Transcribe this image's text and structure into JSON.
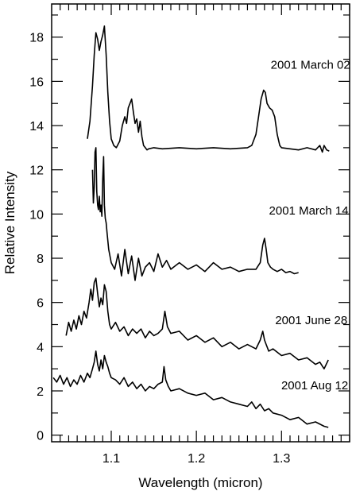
{
  "chart_data": {
    "type": "line",
    "title": "",
    "xlabel": "Wavelength (micron)",
    "ylabel": "Relative Intensity",
    "xlim": [
      1.03,
      1.38
    ],
    "ylim": [
      -0.3,
      19.5
    ],
    "x_ticks": [
      1.1,
      1.2,
      1.3
    ],
    "x_tick_labels": [
      "1.1",
      "1.2",
      "1.3"
    ],
    "y_ticks": [
      0,
      2,
      4,
      6,
      8,
      10,
      12,
      14,
      16,
      18
    ],
    "y_tick_labels": [
      "0",
      "2",
      "4",
      "6",
      "8",
      "10",
      "12",
      "14",
      "16",
      "18"
    ],
    "grid": false,
    "legend": "none",
    "series": [
      {
        "name": "2001 March 02",
        "color": "#000000",
        "x": [
          1.072,
          1.075,
          1.078,
          1.08,
          1.082,
          1.084,
          1.086,
          1.088,
          1.09,
          1.092,
          1.094,
          1.096,
          1.098,
          1.1,
          1.103,
          1.106,
          1.11,
          1.113,
          1.116,
          1.118,
          1.12,
          1.122,
          1.124,
          1.126,
          1.128,
          1.13,
          1.132,
          1.134,
          1.136,
          1.138,
          1.14,
          1.142,
          1.144,
          1.15,
          1.16,
          1.18,
          1.2,
          1.22,
          1.24,
          1.26,
          1.265,
          1.27,
          1.273,
          1.276,
          1.279,
          1.281,
          1.283,
          1.286,
          1.289,
          1.292,
          1.295,
          1.298,
          1.3,
          1.31,
          1.32,
          1.33,
          1.34,
          1.345,
          1.348,
          1.35,
          1.353,
          1.356
        ],
        "y": [
          13.4,
          14.2,
          15.8,
          17.2,
          18.2,
          17.9,
          17.4,
          17.8,
          18.1,
          18.5,
          17.2,
          15.5,
          14.2,
          13.4,
          13.1,
          13.0,
          13.3,
          14.0,
          14.4,
          14.1,
          14.8,
          15.0,
          15.2,
          14.6,
          14.1,
          14.3,
          13.7,
          14.2,
          13.5,
          13.1,
          13.0,
          12.9,
          12.95,
          13.0,
          12.95,
          13.0,
          12.95,
          13.0,
          12.95,
          13.0,
          13.1,
          13.6,
          14.4,
          15.2,
          15.6,
          15.5,
          15.0,
          14.8,
          14.7,
          14.4,
          13.6,
          13.1,
          13.0,
          12.95,
          12.9,
          13.0,
          12.9,
          13.1,
          12.8,
          13.1,
          12.9,
          12.85
        ],
        "label_x": 1.334,
        "label_y": 16.75
      },
      {
        "name": "2001 March 14",
        "color": "#000000",
        "x": [
          1.078,
          1.079,
          1.08,
          1.081,
          1.082,
          1.083,
          1.084,
          1.085,
          1.086,
          1.087,
          1.088,
          1.089,
          1.09,
          1.091,
          1.092,
          1.093,
          1.094,
          1.095,
          1.097,
          1.1,
          1.104,
          1.108,
          1.112,
          1.116,
          1.12,
          1.124,
          1.128,
          1.132,
          1.136,
          1.14,
          1.145,
          1.15,
          1.155,
          1.16,
          1.165,
          1.17,
          1.18,
          1.19,
          1.2,
          1.21,
          1.22,
          1.23,
          1.24,
          1.25,
          1.26,
          1.27,
          1.275,
          1.278,
          1.28,
          1.282,
          1.284,
          1.287,
          1.29,
          1.295,
          1.3,
          1.305,
          1.31,
          1.315,
          1.32
        ],
        "y": [
          12.0,
          10.5,
          11.2,
          12.8,
          13.0,
          11.0,
          10.4,
          10.2,
          10.8,
          10.1,
          10.4,
          9.9,
          11.6,
          12.6,
          10.4,
          9.8,
          9.6,
          9.2,
          8.4,
          7.8,
          7.5,
          8.2,
          7.2,
          8.4,
          7.3,
          8.1,
          7.0,
          8.0,
          7.2,
          7.6,
          7.8,
          7.4,
          8.2,
          7.6,
          7.9,
          7.5,
          7.8,
          7.5,
          7.7,
          7.4,
          7.8,
          7.5,
          7.6,
          7.4,
          7.5,
          7.5,
          7.8,
          8.6,
          8.9,
          8.4,
          7.8,
          7.6,
          7.5,
          7.4,
          7.5,
          7.35,
          7.4,
          7.3,
          7.35
        ],
        "label_x": 1.332,
        "label_y": 10.15
      },
      {
        "name": "2001 June 28",
        "color": "#000000",
        "x": [
          1.047,
          1.05,
          1.053,
          1.056,
          1.059,
          1.062,
          1.065,
          1.068,
          1.071,
          1.074,
          1.076,
          1.078,
          1.08,
          1.082,
          1.084,
          1.086,
          1.088,
          1.09,
          1.092,
          1.094,
          1.096,
          1.098,
          1.1,
          1.105,
          1.11,
          1.115,
          1.12,
          1.125,
          1.13,
          1.135,
          1.14,
          1.145,
          1.15,
          1.155,
          1.16,
          1.163,
          1.166,
          1.17,
          1.18,
          1.19,
          1.2,
          1.21,
          1.22,
          1.23,
          1.24,
          1.25,
          1.26,
          1.27,
          1.275,
          1.278,
          1.28,
          1.282,
          1.285,
          1.29,
          1.3,
          1.31,
          1.32,
          1.33,
          1.34,
          1.345,
          1.35,
          1.355
        ],
        "y": [
          4.5,
          5.1,
          4.7,
          5.2,
          4.8,
          5.4,
          5.0,
          5.6,
          5.3,
          6.0,
          6.6,
          6.1,
          6.9,
          7.1,
          6.4,
          5.8,
          6.2,
          5.9,
          6.8,
          6.5,
          5.6,
          5.0,
          4.8,
          5.1,
          4.7,
          4.9,
          4.5,
          4.8,
          4.6,
          4.8,
          4.4,
          4.7,
          4.5,
          4.6,
          4.8,
          5.6,
          4.9,
          4.6,
          4.7,
          4.3,
          4.5,
          4.2,
          4.4,
          4.0,
          4.2,
          3.9,
          4.1,
          3.9,
          4.3,
          4.7,
          4.3,
          4.1,
          3.8,
          3.9,
          3.6,
          3.7,
          3.4,
          3.5,
          3.2,
          3.3,
          3.0,
          3.4
        ],
        "label_x": 1.335,
        "label_y": 5.2
      },
      {
        "name": "2001 Aug 12",
        "color": "#000000",
        "x": [
          1.032,
          1.036,
          1.04,
          1.044,
          1.048,
          1.052,
          1.056,
          1.06,
          1.064,
          1.068,
          1.072,
          1.075,
          1.078,
          1.08,
          1.082,
          1.084,
          1.086,
          1.088,
          1.09,
          1.092,
          1.094,
          1.096,
          1.098,
          1.1,
          1.105,
          1.11,
          1.115,
          1.12,
          1.125,
          1.13,
          1.135,
          1.14,
          1.145,
          1.15,
          1.155,
          1.16,
          1.162,
          1.164,
          1.167,
          1.17,
          1.18,
          1.19,
          1.2,
          1.21,
          1.22,
          1.23,
          1.24,
          1.25,
          1.26,
          1.265,
          1.27,
          1.275,
          1.28,
          1.285,
          1.29,
          1.3,
          1.31,
          1.32,
          1.33,
          1.34,
          1.35,
          1.355
        ],
        "y": [
          2.6,
          2.4,
          2.7,
          2.3,
          2.6,
          2.2,
          2.5,
          2.3,
          2.7,
          2.4,
          2.8,
          2.6,
          3.0,
          3.3,
          3.8,
          3.2,
          2.9,
          3.4,
          3.0,
          3.6,
          3.3,
          3.1,
          2.8,
          2.6,
          2.5,
          2.3,
          2.6,
          2.2,
          2.4,
          2.1,
          2.3,
          2.0,
          2.2,
          2.1,
          2.3,
          2.4,
          3.1,
          2.5,
          2.2,
          2.0,
          2.1,
          1.9,
          1.8,
          1.9,
          1.6,
          1.7,
          1.5,
          1.4,
          1.3,
          1.5,
          1.2,
          1.4,
          1.1,
          1.2,
          1.0,
          0.9,
          0.7,
          0.8,
          0.5,
          0.6,
          0.4,
          0.35
        ],
        "label_x": 1.339,
        "label_y": 2.25
      }
    ]
  }
}
